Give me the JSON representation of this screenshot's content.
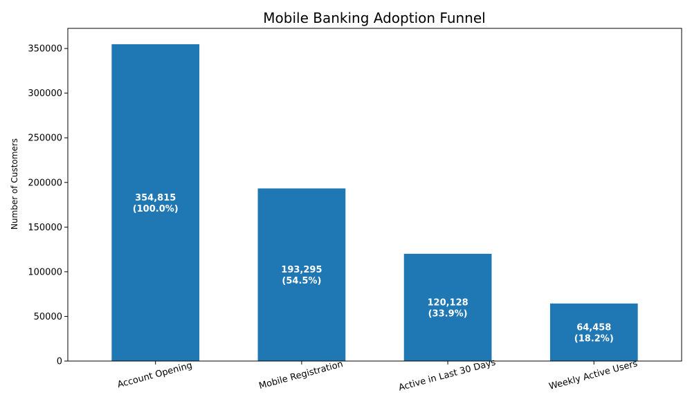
{
  "chart_data": {
    "type": "bar",
    "title": "Mobile Banking Adoption Funnel",
    "xlabel": "",
    "ylabel": "Number of Customers",
    "categories": [
      "Account Opening",
      "Mobile Registration",
      "Active in Last 30 Days",
      "Weekly Active Users"
    ],
    "values": [
      354815,
      193295,
      120128,
      64458
    ],
    "data_labels": [
      "354,815",
      "193,295",
      "120,128",
      "64,458"
    ],
    "percent_labels": [
      "(100.0%)",
      "(54.5%)",
      "(33.9%)",
      "(18.2%)"
    ],
    "ylim": [
      0,
      372556
    ],
    "yticks": [
      0,
      50000,
      100000,
      150000,
      200000,
      250000,
      300000,
      350000
    ],
    "ytick_labels": [
      "0",
      "50000",
      "100000",
      "150000",
      "200000",
      "250000",
      "300000",
      "350000"
    ],
    "bar_color": "#1f77b4",
    "grid": false,
    "legend": "none"
  }
}
